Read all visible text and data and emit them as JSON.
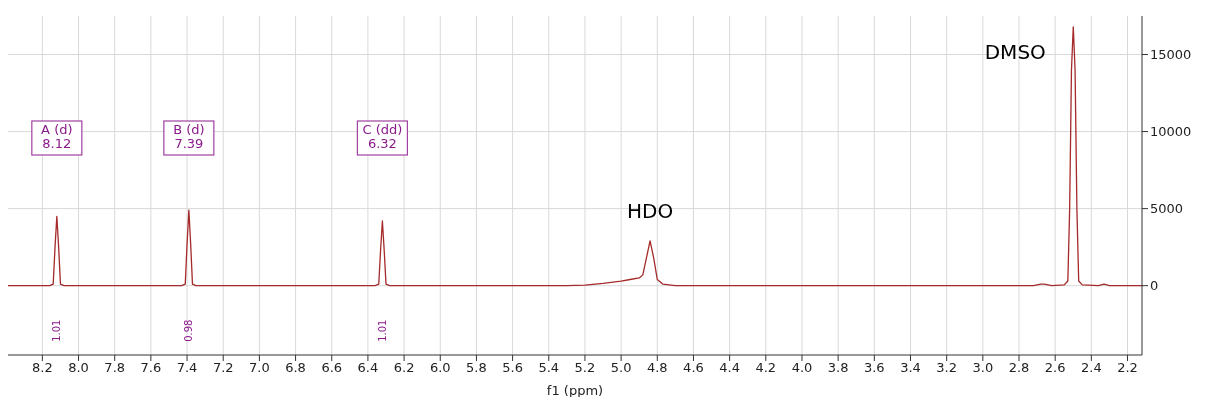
{
  "chart_data": {
    "type": "line",
    "xlabel": "f1 (ppm)",
    "xlim": [
      8.39,
      2.12
    ],
    "xticks": [
      {
        "value": 8.2,
        "label": "8.2"
      },
      {
        "value": 8.0,
        "label": "8.0"
      },
      {
        "value": 7.8,
        "label": "7.8"
      },
      {
        "value": 7.6,
        "label": "7.6"
      },
      {
        "value": 7.4,
        "label": "7.4"
      },
      {
        "value": 7.2,
        "label": "7.2"
      },
      {
        "value": 7.0,
        "label": "7.0"
      },
      {
        "value": 6.8,
        "label": "6.8"
      },
      {
        "value": 6.6,
        "label": "6.6"
      },
      {
        "value": 6.4,
        "label": "6.4"
      },
      {
        "value": 6.2,
        "label": "6.2"
      },
      {
        "value": 6.0,
        "label": "6.0"
      },
      {
        "value": 5.8,
        "label": "5.8"
      },
      {
        "value": 5.6,
        "label": "5.6"
      },
      {
        "value": 5.4,
        "label": "5.4"
      },
      {
        "value": 5.2,
        "label": "5.2"
      },
      {
        "value": 5.0,
        "label": "5.0"
      },
      {
        "value": 4.8,
        "label": "4.8"
      },
      {
        "value": 4.6,
        "label": "4.6"
      },
      {
        "value": 4.4,
        "label": "4.4"
      },
      {
        "value": 4.2,
        "label": "4.2"
      },
      {
        "value": 4.0,
        "label": "4.0"
      },
      {
        "value": 3.8,
        "label": "3.8"
      },
      {
        "value": 3.6,
        "label": "3.6"
      },
      {
        "value": 3.4,
        "label": "3.4"
      },
      {
        "value": 3.2,
        "label": "3.2"
      },
      {
        "value": 3.0,
        "label": "3.0"
      },
      {
        "value": 2.8,
        "label": "2.8"
      },
      {
        "value": 2.6,
        "label": "2.6"
      },
      {
        "value": 2.4,
        "label": "2.4"
      },
      {
        "value": 2.2,
        "label": "2.2"
      }
    ],
    "ylim": [
      -4500,
      17500
    ],
    "yticks": [
      0,
      5000,
      10000,
      15000
    ],
    "grid": true,
    "marker": "none",
    "line_style": "solid",
    "series": [
      {
        "color": "#a52a2a",
        "x": [
          8.39,
          8.16,
          8.14,
          8.13,
          8.12,
          8.11,
          8.1,
          8.08,
          7.43,
          7.41,
          7.4,
          7.39,
          7.38,
          7.37,
          7.35,
          6.36,
          6.34,
          6.33,
          6.32,
          6.31,
          6.3,
          6.28,
          5.3,
          5.2,
          5.1,
          5.0,
          4.95,
          4.9,
          4.88,
          4.86,
          4.84,
          4.82,
          4.8,
          4.77,
          4.7,
          2.72,
          2.68,
          2.66,
          2.62,
          2.55,
          2.53,
          2.52,
          2.51,
          2.5,
          2.49,
          2.48,
          2.47,
          2.45,
          2.36,
          2.33,
          2.3,
          2.12
        ],
        "values": [
          0,
          0,
          100,
          2500,
          4500,
          2500,
          100,
          0,
          0,
          100,
          2700,
          4900,
          2700,
          100,
          0,
          0,
          100,
          2300,
          4200,
          2300,
          100,
          0,
          0,
          30,
          150,
          300,
          400,
          500,
          700,
          1800,
          2900,
          1800,
          400,
          100,
          0,
          0,
          100,
          100,
          0,
          50,
          300,
          5000,
          14000,
          16800,
          14000,
          5000,
          300,
          50,
          0,
          100,
          0,
          0
        ]
      }
    ],
    "annotations": [
      "A (d)\n8.12",
      "B (d)\n7.39",
      "C (dd)\n6.32",
      "1.01",
      "0.98",
      "1.01",
      {
        "text": "HDO",
        "x": 4.84,
        "y": 2900
      },
      {
        "text": "DMSO",
        "x": 2.5,
        "y": 16800
      }
    ]
  }
}
